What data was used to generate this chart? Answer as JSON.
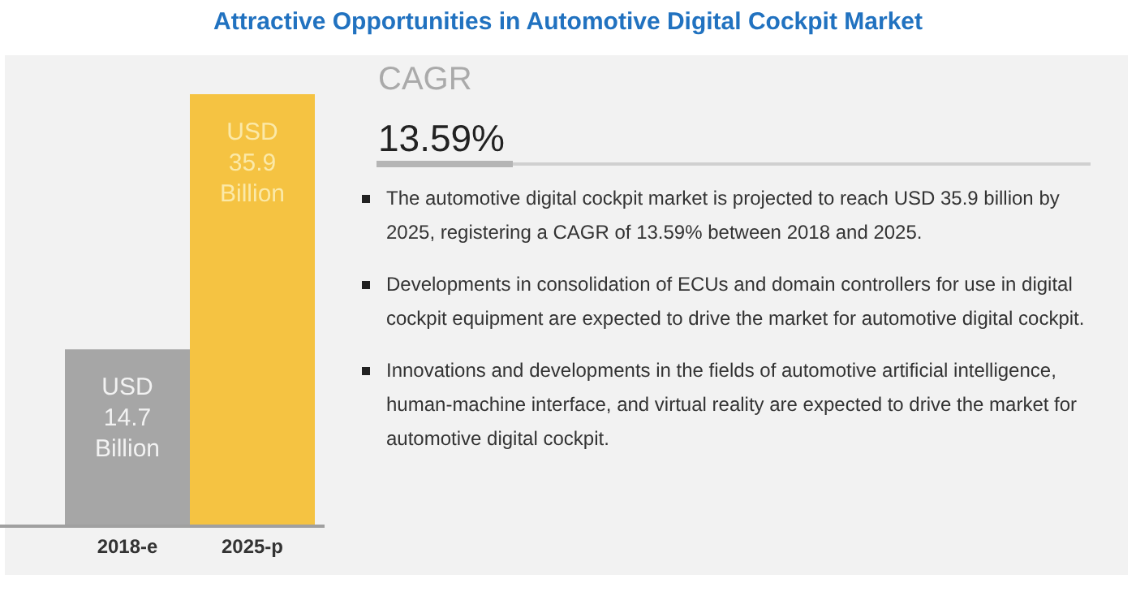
{
  "chart_data": {
    "type": "bar",
    "title": "Attractive Opportunities in Automotive Digital Cockpit Market",
    "categories": [
      "2018-e",
      "2025-p"
    ],
    "values": [
      14.7,
      35.9
    ],
    "colors": [
      "#a6a6a6",
      "#f5c342"
    ],
    "value_labels": [
      "USD\n14.7\nBillion",
      "USD\n35.9\nBillion"
    ],
    "annotations": [
      "CAGR",
      "13.59%",
      "The automotive digital cockpit market is projected to reach USD 35.9 billion by 2025, registering a CAGR of 13.59% between 2018 and 2025.",
      "Developments in consolidation of ECUs and domain controllers for use in digital cockpit equipment are expected to drive the market for automotive digital cockpit.",
      "Innovations and developments in the fields of automotive artificial intelligence, human-machine interface, and virtual reality are expected to drive the market for automotive digital cockpit."
    ]
  }
}
